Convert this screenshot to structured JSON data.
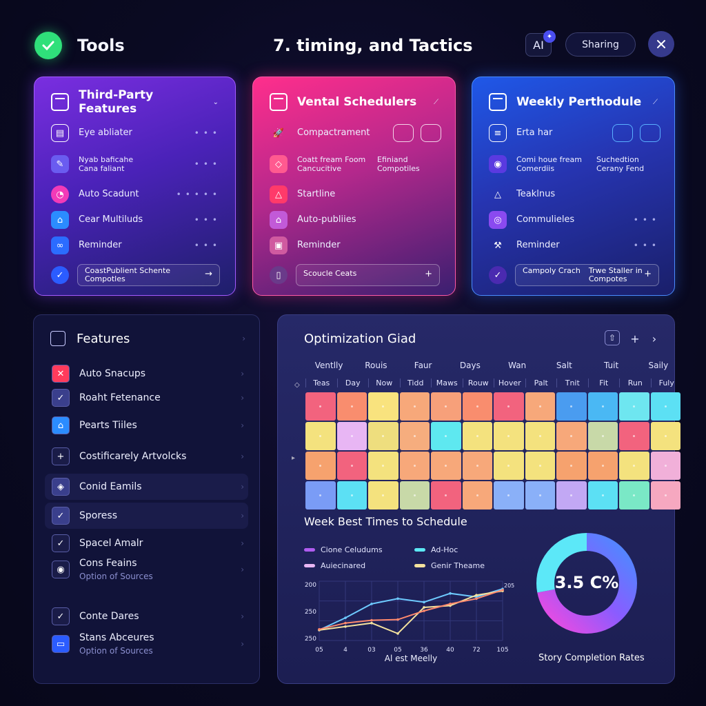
{
  "header": {
    "app_title": "Tools",
    "page_title": "7. timing, and Tactics",
    "ai_label": "AI",
    "sharing_label": "Sharing"
  },
  "cards": [
    {
      "title": "Third-Party Features",
      "items": [
        {
          "label": "Eye abliater",
          "icon": "calendar-icon"
        },
        {
          "label": "Nyab baficahe",
          "label2": "Cana faliant",
          "icon": "edit-icon"
        },
        {
          "label": "Auto Scadunt",
          "icon": "clock-icon"
        },
        {
          "label": "Cear Multiluds",
          "icon": "building-icon"
        },
        {
          "label": "Reminder",
          "icon": "link-icon"
        }
      ],
      "field": {
        "line1": "CoastPublient Schente",
        "line2": "Compotles"
      }
    },
    {
      "title": "Vental Schedulers",
      "items": [
        {
          "label": "Compactrament",
          "icon": "rocket-icon"
        },
        {
          "label": "Coatt fream Foom",
          "label2": "Cancucitive",
          "col2": "Efiniand",
          "col2b": "Compotiles",
          "icon": "tag-icon"
        },
        {
          "label": "Startline",
          "icon": "triangle-icon"
        },
        {
          "label": "Auto-publiies",
          "icon": "house-icon"
        },
        {
          "label": "Reminder",
          "icon": "calendar-icon"
        }
      ],
      "field": {
        "line1": "Scoucle Ceats"
      }
    },
    {
      "title": "Weekly Perthodule",
      "items": [
        {
          "label": "Erta har",
          "icon": "document-icon"
        },
        {
          "label": "Comi houe fream",
          "label2": "Comerdiis",
          "col2": "Suchedtion",
          "col2b": "Cerany Fend",
          "icon": "camera-icon"
        },
        {
          "label": "Teaklnus",
          "icon": "triangle-icon"
        },
        {
          "label": "Commulieles",
          "icon": "target-icon"
        },
        {
          "label": "Reminder",
          "icon": "wrench-icon"
        }
      ],
      "field": {
        "line1": "Campoly Crach",
        "col2": "Trwe Staller in",
        "col2b": "Compotes"
      }
    }
  ],
  "features": {
    "title": "Features",
    "items": [
      {
        "label": "Auto Snacups",
        "icon": "close-icon",
        "color": "#ff3b5c"
      },
      {
        "label": "Roaht Fetenance",
        "icon": "check-icon",
        "color": "#3a3f8c"
      },
      {
        "label": "Pearts Tiiles",
        "icon": "house-icon",
        "color": "#2b8cff"
      },
      {
        "label": "Costificarely Artvolcks",
        "icon": "plus-icon",
        "color": "#1a1c48"
      },
      {
        "label": "Conid Eamils",
        "icon": "shield-icon",
        "color": "#3a3f8c"
      },
      {
        "label": "Sporess",
        "icon": "check-icon",
        "color": "#3a3f8c"
      },
      {
        "label": "Spacel Amalr",
        "icon": "check-icon",
        "color": "#1a1c48"
      },
      {
        "label": "Cons Feains",
        "label2": "Option of Sources",
        "icon": "camera-icon",
        "color": "#1a1c48"
      },
      {
        "label": "Conte Dares",
        "icon": "check-icon",
        "color": "#1a1c48"
      },
      {
        "label": "Stans Abceures",
        "label2": "Option of Sources",
        "icon": "card-icon",
        "color": "#2b5cff"
      }
    ]
  },
  "optimization": {
    "title": "Optimization Giad",
    "header_top": [
      "Ventlly",
      "Rouis",
      "Faur",
      "Days",
      "Wan",
      "Salt",
      "Tuit",
      "Saily"
    ],
    "header_bottom": [
      "Teas",
      "Day",
      "Now",
      "Tidd",
      "Maws",
      "Rouw",
      "Hover",
      "Palt",
      "Tnit",
      "Fit",
      "Run",
      "Fuly"
    ],
    "grid_colors": [
      [
        "#f2637e",
        "#f98d6e",
        "#f9e37e",
        "#f7a87a",
        "#f7a07a",
        "#f98d6e",
        "#f2637e",
        "#f7a87a",
        "#4a9cf0",
        "#4ab8f4",
        "#6ee6f0",
        "#5ce0f4"
      ],
      [
        "#f4e27e",
        "#e8b6f4",
        "#eede7e",
        "#f6ad7e",
        "#5ee8f0",
        "#f4e27e",
        "#f4e27e",
        "#f4e27e",
        "#f7a87a",
        "#c8d9a8",
        "#f2637e",
        "#f4e27e"
      ],
      [
        "#f6a26e",
        "#f2637e",
        "#f4e27e",
        "#f7a87a",
        "#f7a87a",
        "#f7a87a",
        "#f4e27e",
        "#f4e27e",
        "#f6a26e",
        "#f6a26e",
        "#f4e27e",
        "#f1b0d9"
      ],
      [
        "#7a9cf6",
        "#5ce0f4",
        "#f4e27e",
        "#c8d9a8",
        "#f2637e",
        "#f7a87a",
        "#8ab0f8",
        "#8ab0f8",
        "#c2a8f4",
        "#5ce0f4",
        "#7ae8c6",
        "#f6a8c0"
      ]
    ],
    "week_title": "Week Best Times to Schedule",
    "legend": [
      {
        "label": "Cione Celudums",
        "color": "#b05cf0"
      },
      {
        "label": "Ad-Hoc",
        "color": "#5ce8f4"
      },
      {
        "label": "Auiecinared",
        "color": "#e8b6f4"
      },
      {
        "label": "Genir Theame",
        "color": "#f4e29e"
      }
    ],
    "donut_value": "3.5 C%",
    "donut_label": "Story Completion Rates",
    "donut_fraction": 0.72
  },
  "chart_data": {
    "type": "line",
    "x": [
      "05",
      "4",
      "03",
      "05",
      "36",
      "40",
      "72",
      "105"
    ],
    "xlabel": "Al est Meelly",
    "yticks": [
      "200",
      "250",
      "250"
    ],
    "end_label": "205",
    "series": [
      {
        "color": "#6ecbff",
        "values": [
          150,
          185,
          225,
          240,
          230,
          255,
          245,
          268
        ]
      },
      {
        "color": "#f4e29e",
        "values": [
          150,
          160,
          170,
          140,
          215,
          220,
          250,
          262
        ]
      },
      {
        "color": "#ff8a6e",
        "values": [
          152,
          170,
          178,
          180,
          205,
          225,
          240,
          265
        ]
      }
    ],
    "ylim": [
      120,
      290
    ]
  }
}
